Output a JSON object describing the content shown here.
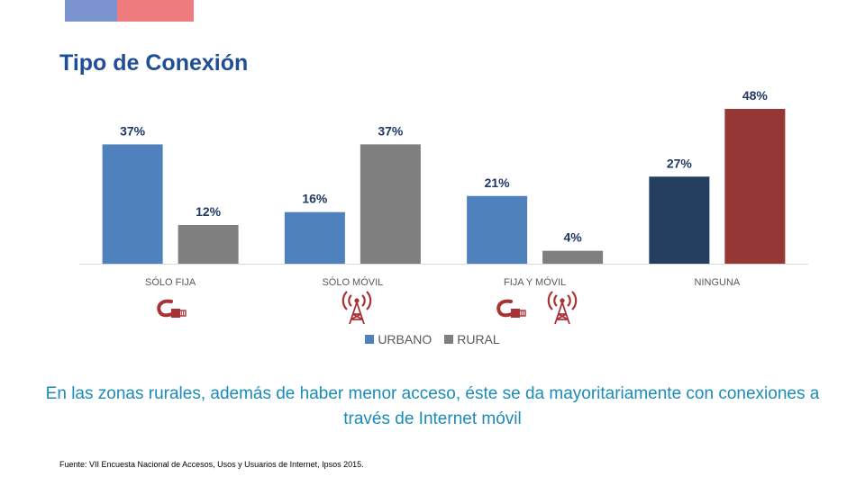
{
  "title": "Tipo de Conexión",
  "caption": "En las zonas rurales, además de haber menor acceso, éste se da mayoritariamente con conexiones a través de Internet móvil",
  "source": "Fuente: VII Encuesta Nacional de Accesos, Usos y Usuarios de Internet, Ipsos 2015.",
  "colors": {
    "header_blue": "#7b93cf",
    "header_red": "#ee7b7e",
    "title": "#1f4e96",
    "caption": "#1b8bb8",
    "icon": "#a83236"
  },
  "chart_data": {
    "type": "bar",
    "categories": [
      "SÓLO FIJA",
      "SÓLO MÓVIL",
      "FIJA Y MÓVIL",
      "NINGUNA"
    ],
    "series": [
      {
        "name": "URBANO",
        "values": [
          37,
          16,
          21,
          27
        ],
        "labels": [
          "37%",
          "16%",
          "21%",
          "27%"
        ],
        "color": "#4f81bd"
      },
      {
        "name": "RURAL",
        "values": [
          12,
          37,
          4,
          48
        ],
        "labels": [
          "12%",
          "37%",
          "4%",
          "48%"
        ],
        "color": "#7f7f7f"
      }
    ],
    "point_colors": {
      "NINGUNA": {
        "URBANO": "#243f60",
        "RURAL": "#953735"
      }
    },
    "ylim": [
      0,
      48
    ],
    "legend_position": "bottom",
    "grid": false,
    "category_icons": {
      "SÓLO FIJA": [
        "cable-icon"
      ],
      "SÓLO MÓVIL": [
        "antenna-icon"
      ],
      "FIJA Y MÓVIL": [
        "cable-icon",
        "antenna-icon"
      ],
      "NINGUNA": []
    }
  }
}
